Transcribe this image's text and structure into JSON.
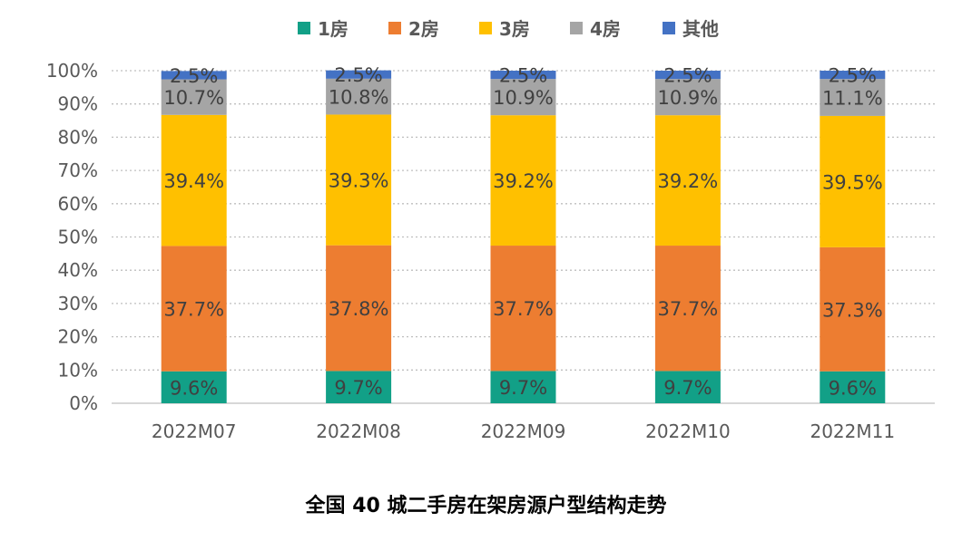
{
  "chart_data": {
    "type": "bar",
    "stacked": true,
    "title": "全国 40 城二手房在架房源户型结构走势",
    "categories": [
      "2022M07",
      "2022M08",
      "2022M09",
      "2022M10",
      "2022M11"
    ],
    "series": [
      {
        "name": "1房",
        "color": "#12A087",
        "values": [
          9.6,
          9.7,
          9.7,
          9.7,
          9.6
        ]
      },
      {
        "name": "2房",
        "color": "#ED7D31",
        "values": [
          37.7,
          37.8,
          37.7,
          37.7,
          37.3
        ]
      },
      {
        "name": "3房",
        "color": "#FFC000",
        "values": [
          39.4,
          39.3,
          39.2,
          39.2,
          39.5
        ]
      },
      {
        "name": "4房",
        "color": "#A5A5A5",
        "values": [
          10.7,
          10.8,
          10.9,
          10.9,
          11.1
        ]
      },
      {
        "name": "其他",
        "color": "#4472C4",
        "values": [
          2.5,
          2.5,
          2.5,
          2.5,
          2.5
        ]
      }
    ],
    "yticks": [
      "0%",
      "10%",
      "20%",
      "30%",
      "40%",
      "50%",
      "60%",
      "70%",
      "80%",
      "90%",
      "100%"
    ],
    "ylim": [
      0,
      100
    ],
    "grid": true,
    "legend": "top",
    "value_suffix": "%"
  }
}
